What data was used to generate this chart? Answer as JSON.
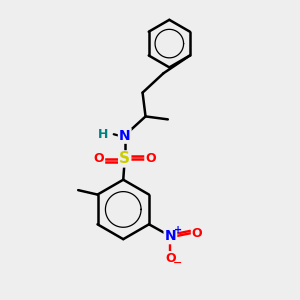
{
  "bg_color": "#eeeeee",
  "bond_color": "#000000",
  "bond_width": 1.8,
  "N_color": "#0000ff",
  "S_color": "#cccc00",
  "O_color": "#ff0000",
  "H_color": "#008080",
  "figsize": [
    3.0,
    3.0
  ],
  "dpi": 100,
  "xlim": [
    0,
    10
  ],
  "ylim": [
    0,
    10
  ]
}
